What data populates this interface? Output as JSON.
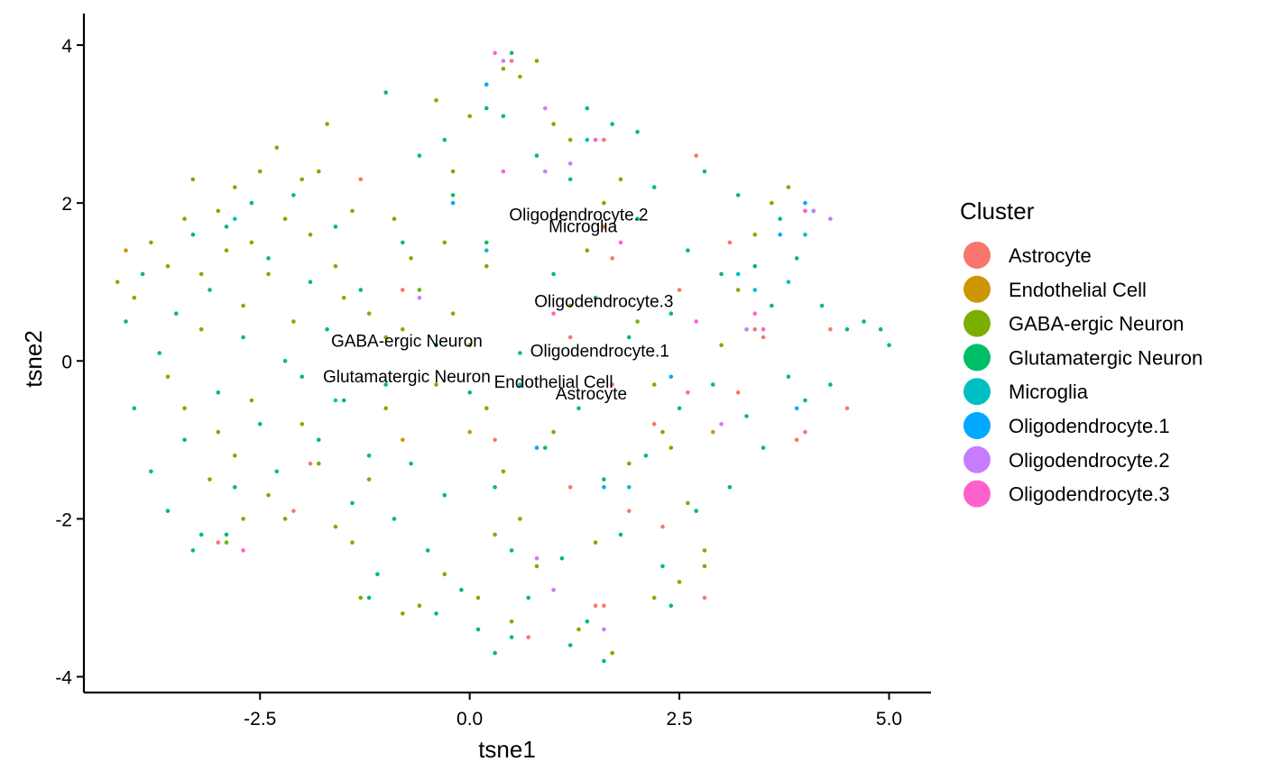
{
  "chart_data": {
    "type": "scatter",
    "title": "",
    "xlabel": "tsne1",
    "ylabel": "tsne2",
    "xlim": [
      -4.6,
      5.5
    ],
    "ylim": [
      -4.2,
      4.4
    ],
    "grid": false,
    "legend_position": "right",
    "legend_title": "Cluster",
    "x_ticks": [
      {
        "value": -2.5,
        "label": "-2.5"
      },
      {
        "value": 0.0,
        "label": "0.0"
      },
      {
        "value": 2.5,
        "label": "2.5"
      },
      {
        "value": 5.0,
        "label": "5.0"
      }
    ],
    "y_ticks": [
      {
        "value": -4,
        "label": "-4"
      },
      {
        "value": -2,
        "label": "-2"
      },
      {
        "value": 0,
        "label": "0"
      },
      {
        "value": 2,
        "label": "2"
      },
      {
        "value": 4,
        "label": "4"
      }
    ],
    "series": [
      {
        "name": "Astrocyte",
        "color": "#F8766D",
        "points": [
          [
            1.7,
            -0.3
          ],
          [
            2.2,
            -0.8
          ],
          [
            2.6,
            -0.4
          ],
          [
            3.4,
            0.4
          ],
          [
            3.5,
            0.3
          ],
          [
            3.9,
            -1.0
          ],
          [
            4.3,
            0.4
          ],
          [
            4.5,
            -0.6
          ],
          [
            1.2,
            -1.6
          ],
          [
            1.5,
            -3.1
          ],
          [
            1.6,
            -3.1
          ],
          [
            0.7,
            -3.5
          ],
          [
            2.8,
            -3.0
          ],
          [
            -2.1,
            -1.9
          ],
          [
            -3.0,
            -2.3
          ],
          [
            -0.8,
            0.9
          ],
          [
            1.7,
            1.3
          ],
          [
            2.5,
            0.9
          ],
          [
            2.7,
            2.6
          ],
          [
            -1.3,
            2.3
          ],
          [
            0.5,
            3.8
          ],
          [
            1.6,
            2.8
          ],
          [
            3.1,
            1.5
          ],
          [
            -1.9,
            -1.3
          ],
          [
            0.3,
            -1.0
          ],
          [
            1.2,
            0.3
          ],
          [
            2.3,
            -2.1
          ],
          [
            3.2,
            -0.4
          ],
          [
            1.9,
            -1.9
          ],
          [
            4.0,
            -0.9
          ]
        ]
      },
      {
        "name": "Endothelial Cell",
        "color": "#CD9600",
        "points": [
          [
            -4.1,
            1.4
          ],
          [
            -0.8,
            -1.0
          ],
          [
            1.6,
            1.7
          ],
          [
            0.0,
            -0.9
          ],
          [
            2.9,
            -0.9
          ]
        ]
      },
      {
        "name": "GABA-ergic Neuron",
        "color": "#7CAE00",
        "points": [
          [
            -4.2,
            1.0
          ],
          [
            -4.0,
            0.8
          ],
          [
            -3.8,
            1.5
          ],
          [
            -3.6,
            1.2
          ],
          [
            -3.4,
            1.8
          ],
          [
            -3.3,
            2.3
          ],
          [
            -3.2,
            1.1
          ],
          [
            -3.0,
            1.9
          ],
          [
            -2.9,
            1.4
          ],
          [
            -2.8,
            2.2
          ],
          [
            -2.7,
            0.7
          ],
          [
            -2.6,
            1.5
          ],
          [
            -2.5,
            2.4
          ],
          [
            -2.4,
            1.1
          ],
          [
            -2.3,
            2.7
          ],
          [
            -2.2,
            1.8
          ],
          [
            -2.1,
            0.5
          ],
          [
            -2.0,
            2.3
          ],
          [
            -1.9,
            1.6
          ],
          [
            -1.8,
            2.4
          ],
          [
            -1.7,
            3.0
          ],
          [
            -1.6,
            1.2
          ],
          [
            -1.5,
            0.8
          ],
          [
            -1.4,
            1.9
          ],
          [
            -3.6,
            -0.2
          ],
          [
            -3.4,
            -0.6
          ],
          [
            -3.2,
            0.4
          ],
          [
            -3.0,
            -0.9
          ],
          [
            -2.8,
            -1.2
          ],
          [
            -2.6,
            -0.5
          ],
          [
            -2.4,
            -1.7
          ],
          [
            -2.2,
            -2.0
          ],
          [
            -2.0,
            -0.8
          ],
          [
            -1.8,
            -1.3
          ],
          [
            -1.6,
            -2.1
          ],
          [
            -1.4,
            -2.3
          ],
          [
            -1.2,
            -1.5
          ],
          [
            -1.0,
            -0.6
          ],
          [
            -0.8,
            0.4
          ],
          [
            -0.6,
            0.9
          ],
          [
            -0.4,
            -0.3
          ],
          [
            -0.2,
            0.6
          ],
          [
            0.0,
            0.2
          ],
          [
            0.2,
            -0.6
          ],
          [
            0.4,
            -1.4
          ],
          [
            0.6,
            -2.0
          ],
          [
            0.8,
            -2.6
          ],
          [
            1.0,
            -0.9
          ],
          [
            1.2,
            0.7
          ],
          [
            1.4,
            1.4
          ],
          [
            1.6,
            2.0
          ],
          [
            1.8,
            2.3
          ],
          [
            2.0,
            0.5
          ],
          [
            2.2,
            -0.3
          ],
          [
            2.4,
            -1.1
          ],
          [
            2.6,
            -1.8
          ],
          [
            2.8,
            -2.6
          ],
          [
            3.0,
            0.2
          ],
          [
            3.2,
            0.9
          ],
          [
            3.4,
            1.6
          ],
          [
            3.6,
            2.0
          ],
          [
            3.8,
            2.2
          ],
          [
            4.0,
            1.9
          ],
          [
            0.4,
            3.7
          ],
          [
            0.6,
            3.6
          ],
          [
            0.8,
            3.8
          ],
          [
            1.0,
            3.0
          ],
          [
            1.2,
            2.8
          ],
          [
            -0.4,
            3.3
          ],
          [
            -0.2,
            2.4
          ],
          [
            0.0,
            3.1
          ],
          [
            0.2,
            1.2
          ],
          [
            -2.9,
            -2.3
          ],
          [
            -2.7,
            -2.0
          ],
          [
            -3.1,
            -1.5
          ],
          [
            -0.6,
            -3.1
          ],
          [
            -0.3,
            -2.7
          ],
          [
            0.1,
            -3.0
          ],
          [
            0.5,
            -3.3
          ],
          [
            1.3,
            -3.4
          ],
          [
            1.7,
            -3.7
          ],
          [
            2.2,
            -3.0
          ],
          [
            2.5,
            -2.8
          ],
          [
            2.8,
            -2.4
          ],
          [
            -1.3,
            -3.0
          ],
          [
            -0.8,
            -3.2
          ],
          [
            0.3,
            -2.2
          ],
          [
            1.5,
            -2.3
          ],
          [
            1.9,
            -1.3
          ],
          [
            2.3,
            -0.9
          ],
          [
            -1.0,
            0.3
          ],
          [
            -1.2,
            0.6
          ],
          [
            -0.7,
            1.3
          ],
          [
            -0.9,
            1.8
          ],
          [
            -0.3,
            1.5
          ]
        ]
      },
      {
        "name": "Glutamatergic Neuron",
        "color": "#00BE67",
        "points": [
          [
            -4.1,
            0.5
          ],
          [
            -4.0,
            -0.6
          ],
          [
            -3.9,
            1.1
          ],
          [
            -3.8,
            -1.4
          ],
          [
            -3.7,
            0.1
          ],
          [
            -3.6,
            -1.9
          ],
          [
            -3.5,
            0.6
          ],
          [
            -3.4,
            -1.0
          ],
          [
            -3.3,
            1.6
          ],
          [
            -3.2,
            -2.2
          ],
          [
            -3.1,
            0.9
          ],
          [
            -3.0,
            -0.4
          ],
          [
            -2.9,
            1.7
          ],
          [
            -2.8,
            -1.6
          ],
          [
            -2.7,
            0.3
          ],
          [
            -2.6,
            2.0
          ],
          [
            -2.5,
            -0.8
          ],
          [
            -2.4,
            1.3
          ],
          [
            -2.3,
            -1.4
          ],
          [
            -2.2,
            0.0
          ],
          [
            -2.1,
            2.1
          ],
          [
            -2.0,
            -0.2
          ],
          [
            -1.9,
            1.0
          ],
          [
            -1.8,
            -1.0
          ],
          [
            -1.7,
            0.4
          ],
          [
            -1.6,
            1.7
          ],
          [
            -1.5,
            -0.5
          ],
          [
            -1.4,
            -1.8
          ],
          [
            -1.3,
            0.9
          ],
          [
            -1.2,
            -1.2
          ],
          [
            -1.1,
            -2.7
          ],
          [
            -1.0,
            -0.3
          ],
          [
            -0.9,
            -2.0
          ],
          [
            -0.8,
            1.5
          ],
          [
            -0.7,
            -1.3
          ],
          [
            -0.6,
            2.6
          ],
          [
            -0.5,
            -2.4
          ],
          [
            -0.4,
            0.2
          ],
          [
            -0.3,
            -1.7
          ],
          [
            -0.2,
            2.1
          ],
          [
            -0.1,
            -2.9
          ],
          [
            0.0,
            -0.4
          ],
          [
            0.1,
            -3.4
          ],
          [
            0.2,
            1.5
          ],
          [
            0.3,
            -1.6
          ],
          [
            0.4,
            3.1
          ],
          [
            0.5,
            -2.4
          ],
          [
            0.6,
            0.1
          ],
          [
            0.7,
            -3.0
          ],
          [
            0.8,
            2.6
          ],
          [
            0.9,
            -1.1
          ],
          [
            1.0,
            1.1
          ],
          [
            1.1,
            -2.5
          ],
          [
            1.2,
            2.3
          ],
          [
            1.3,
            -0.6
          ],
          [
            1.4,
            -3.3
          ],
          [
            1.5,
            0.8
          ],
          [
            1.6,
            -1.5
          ],
          [
            1.7,
            3.0
          ],
          [
            1.8,
            -2.2
          ],
          [
            1.9,
            0.3
          ],
          [
            2.0,
            1.8
          ],
          [
            2.1,
            -1.2
          ],
          [
            2.2,
            2.2
          ],
          [
            2.3,
            -2.6
          ],
          [
            2.4,
            0.6
          ],
          [
            2.5,
            -0.6
          ],
          [
            2.6,
            1.4
          ],
          [
            2.7,
            -1.9
          ],
          [
            2.8,
            2.4
          ],
          [
            2.9,
            -0.3
          ],
          [
            3.0,
            1.1
          ],
          [
            3.1,
            -1.6
          ],
          [
            3.2,
            2.1
          ],
          [
            3.3,
            -0.7
          ],
          [
            3.4,
            1.2
          ],
          [
            3.5,
            -1.1
          ],
          [
            3.6,
            0.7
          ],
          [
            3.7,
            1.8
          ],
          [
            3.8,
            -0.2
          ],
          [
            3.9,
            1.3
          ],
          [
            4.0,
            -0.5
          ],
          [
            4.1,
            1.9
          ],
          [
            4.2,
            0.7
          ],
          [
            4.3,
            -0.3
          ],
          [
            4.5,
            0.4
          ],
          [
            4.7,
            0.5
          ],
          [
            4.9,
            0.4
          ],
          [
            5.0,
            0.2
          ],
          [
            0.3,
            -3.7
          ],
          [
            0.5,
            -3.5
          ],
          [
            1.6,
            -3.8
          ],
          [
            1.2,
            -3.6
          ],
          [
            -1.2,
            -3.0
          ],
          [
            -0.4,
            -3.2
          ],
          [
            2.4,
            -3.1
          ],
          [
            0.5,
            3.9
          ],
          [
            0.2,
            3.2
          ],
          [
            -0.3,
            2.8
          ],
          [
            -1.0,
            3.4
          ],
          [
            1.4,
            3.2
          ],
          [
            2.0,
            2.9
          ],
          [
            -3.3,
            -2.4
          ],
          [
            -2.9,
            -2.2
          ]
        ]
      },
      {
        "name": "Microglia",
        "color": "#00BFC4",
        "points": [
          [
            -2.8,
            1.8
          ],
          [
            0.2,
            1.4
          ],
          [
            1.4,
            2.8
          ],
          [
            3.4,
            0.9
          ],
          [
            3.2,
            1.1
          ],
          [
            4.0,
            1.6
          ],
          [
            -1.6,
            -0.5
          ],
          [
            1.9,
            -1.6
          ],
          [
            0.6,
            -0.3
          ],
          [
            3.8,
            1.0
          ]
        ]
      },
      {
        "name": "Oligodendrocyte.1",
        "color": "#00A9FF",
        "points": [
          [
            -0.2,
            2.0
          ],
          [
            0.8,
            -1.1
          ],
          [
            1.6,
            -1.6
          ],
          [
            3.9,
            -0.6
          ],
          [
            3.7,
            1.6
          ],
          [
            0.2,
            3.5
          ],
          [
            2.4,
            -0.2
          ],
          [
            4.0,
            2.0
          ]
        ]
      },
      {
        "name": "Oligodendrocyte.2",
        "color": "#C77CFF",
        "points": [
          [
            0.4,
            3.8
          ],
          [
            0.9,
            3.2
          ],
          [
            1.2,
            2.5
          ],
          [
            0.9,
            2.4
          ],
          [
            -0.6,
            0.8
          ],
          [
            4.1,
            1.9
          ],
          [
            4.3,
            1.8
          ],
          [
            3.0,
            -0.8
          ],
          [
            1.0,
            -2.9
          ],
          [
            1.6,
            -3.4
          ],
          [
            3.3,
            0.4
          ],
          [
            0.8,
            -2.5
          ]
        ]
      },
      {
        "name": "Oligodendrocyte.3",
        "color": "#FF61CC",
        "points": [
          [
            0.3,
            3.9
          ],
          [
            1.5,
            2.8
          ],
          [
            0.4,
            2.4
          ],
          [
            3.5,
            0.4
          ],
          [
            3.4,
            0.6
          ],
          [
            1.0,
            0.6
          ],
          [
            2.7,
            0.5
          ],
          [
            -2.7,
            -2.4
          ],
          [
            1.8,
            1.5
          ],
          [
            4.0,
            1.9
          ]
        ]
      }
    ],
    "annotations": [
      {
        "text": "Oligodendrocyte.2",
        "x": 1.3,
        "y": 1.85
      },
      {
        "text": "Microglia",
        "x": 1.35,
        "y": 1.7
      },
      {
        "text": "Oligodendrocyte.3",
        "x": 1.6,
        "y": 0.75
      },
      {
        "text": "GABA-ergic Neuron",
        "x": -0.75,
        "y": 0.25
      },
      {
        "text": "Oligodendrocyte.1",
        "x": 1.55,
        "y": 0.12
      },
      {
        "text": "Glutamatergic Neuron",
        "x": -0.75,
        "y": -0.2
      },
      {
        "text": "Endothelial Cell",
        "x": 1.0,
        "y": -0.27
      },
      {
        "text": "Astrocyte",
        "x": 1.45,
        "y": -0.42
      }
    ]
  }
}
